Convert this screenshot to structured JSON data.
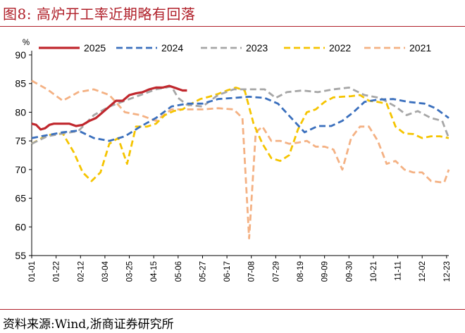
{
  "header": {
    "title": "图8:   高炉开工率近期略有回落"
  },
  "source": {
    "text": "资料来源:Wind,浙商证券研究所"
  },
  "colors": {
    "title": "#b0202a",
    "series_2025": "#c0272d",
    "series_2024": "#3a6fbd",
    "series_2023": "#a6a6a6",
    "series_2022": "#f5c400",
    "series_2021": "#f4b183"
  },
  "chart_data": {
    "type": "line",
    "y_unit": "%",
    "ylim": [
      55,
      90
    ],
    "y_ticks": [
      55,
      60,
      65,
      70,
      75,
      80,
      85,
      90
    ],
    "x_tick_labels": [
      "01-01",
      "01-22",
      "02-12",
      "03-04",
      "03-25",
      "04-15",
      "05-06",
      "05-27",
      "06-17",
      "07-08",
      "07-29",
      "08-19",
      "09-09",
      "09-30",
      "10-21",
      "11-11",
      "12-02",
      "12-23"
    ],
    "grid": false,
    "legend": "top",
    "series": [
      {
        "name": "2025",
        "style": "solid",
        "color": "#c0272d",
        "points": [
          [
            0,
            78
          ],
          [
            2,
            77.8
          ],
          [
            4,
            77
          ],
          [
            6,
            77.2
          ],
          [
            8,
            77.8
          ],
          [
            10,
            78
          ],
          [
            12,
            78
          ],
          [
            14,
            78
          ],
          [
            17,
            78
          ],
          [
            20,
            77.6
          ],
          [
            23,
            77.8
          ],
          [
            26,
            78.5
          ],
          [
            29,
            79
          ],
          [
            32,
            80
          ],
          [
            35,
            81
          ],
          [
            38,
            82
          ],
          [
            41,
            82
          ],
          [
            44,
            83
          ],
          [
            47,
            83.3
          ],
          [
            50,
            83.5
          ],
          [
            53,
            84
          ],
          [
            56,
            84.3
          ],
          [
            59,
            84.3
          ],
          [
            62,
            84.6
          ],
          [
            65,
            84.2
          ],
          [
            68,
            83.8
          ],
          [
            70,
            83.8
          ]
        ]
      },
      {
        "name": "2024",
        "style": "dashed",
        "color": "#3a6fbd",
        "points": [
          [
            0,
            75.5
          ],
          [
            7,
            76
          ],
          [
            14,
            76.5
          ],
          [
            21,
            76.8
          ],
          [
            28,
            75.5
          ],
          [
            35,
            75
          ],
          [
            42,
            75.8
          ],
          [
            49,
            77.5
          ],
          [
            56,
            79
          ],
          [
            63,
            81
          ],
          [
            70,
            81.5
          ],
          [
            77,
            81.5
          ],
          [
            84,
            82.3
          ],
          [
            91,
            82.5
          ],
          [
            98,
            82.7
          ],
          [
            105,
            82.5
          ],
          [
            111,
            81.5
          ],
          [
            117,
            79
          ],
          [
            123,
            76.5
          ],
          [
            129,
            77.6
          ],
          [
            135,
            77.6
          ],
          [
            140,
            78.5
          ],
          [
            145,
            80
          ],
          [
            150,
            81.8
          ],
          [
            156,
            82.2
          ],
          [
            163,
            82.3
          ],
          [
            170,
            81.8
          ],
          [
            177,
            81.5
          ],
          [
            182,
            80.7
          ],
          [
            188,
            79
          ]
        ]
      },
      {
        "name": "2023",
        "style": "dashed",
        "color": "#a6a6a6",
        "points": [
          [
            0,
            74.5
          ],
          [
            7,
            75.8
          ],
          [
            14,
            76.3
          ],
          [
            21,
            76.7
          ],
          [
            28,
            79.5
          ],
          [
            35,
            81
          ],
          [
            42,
            82
          ],
          [
            49,
            83
          ],
          [
            56,
            84
          ],
          [
            63,
            84.5
          ],
          [
            66,
            82.5
          ],
          [
            70,
            81.3
          ],
          [
            77,
            81
          ],
          [
            84,
            83
          ],
          [
            91,
            84
          ],
          [
            98,
            84
          ],
          [
            105,
            84
          ],
          [
            110,
            82.5
          ],
          [
            115,
            83.5
          ],
          [
            122,
            83.8
          ],
          [
            129,
            83.5
          ],
          [
            136,
            84
          ],
          [
            143,
            84.3
          ],
          [
            150,
            83
          ],
          [
            157,
            82.5
          ],
          [
            164,
            81
          ],
          [
            169,
            79.5
          ],
          [
            174,
            80.2
          ],
          [
            180,
            79
          ],
          [
            185,
            78.5
          ],
          [
            188,
            75.5
          ]
        ]
      },
      {
        "name": "2022",
        "style": "dashed",
        "color": "#f5c400",
        "points": [
          [
            0,
            74.5
          ],
          [
            7,
            76
          ],
          [
            14,
            76.3
          ],
          [
            19,
            73
          ],
          [
            23,
            69.5
          ],
          [
            27,
            68
          ],
          [
            31,
            69.5
          ],
          [
            35,
            74.5
          ],
          [
            39,
            75.5
          ],
          [
            43,
            71
          ],
          [
            47,
            77.5
          ],
          [
            52,
            77.5
          ],
          [
            56,
            78
          ],
          [
            60,
            79.5
          ],
          [
            64,
            80.2
          ],
          [
            68,
            80.5
          ],
          [
            72,
            81.5
          ],
          [
            76,
            82.3
          ],
          [
            80,
            82.7
          ],
          [
            84,
            83.2
          ],
          [
            88,
            83.8
          ],
          [
            92,
            84.3
          ],
          [
            96,
            83.8
          ],
          [
            100,
            78
          ],
          [
            104,
            74.5
          ],
          [
            108,
            72
          ],
          [
            112,
            71.5
          ],
          [
            116,
            72.5
          ],
          [
            120,
            77
          ],
          [
            124,
            80
          ],
          [
            128,
            80.5
          ],
          [
            132,
            81.8
          ],
          [
            136,
            82.6
          ],
          [
            140,
            82.7
          ],
          [
            144,
            82.8
          ],
          [
            148,
            83
          ],
          [
            152,
            82
          ],
          [
            156,
            81.8
          ],
          [
            160,
            81.5
          ],
          [
            164,
            77.5
          ],
          [
            168,
            76.3
          ],
          [
            172,
            76.2
          ],
          [
            176,
            75.5
          ],
          [
            180,
            75.8
          ],
          [
            184,
            75.8
          ],
          [
            188,
            75.5
          ]
        ]
      },
      {
        "name": "2021",
        "style": "dashed",
        "color": "#f4b183",
        "points": [
          [
            0,
            85.5
          ],
          [
            7,
            84
          ],
          [
            14,
            82
          ],
          [
            21,
            83.5
          ],
          [
            28,
            84
          ],
          [
            35,
            83
          ],
          [
            42,
            80
          ],
          [
            49,
            79.5
          ],
          [
            56,
            78.5
          ],
          [
            63,
            80.5
          ],
          [
            70,
            80.5
          ],
          [
            77,
            80.5
          ],
          [
            84,
            80.7
          ],
          [
            91,
            80.5
          ],
          [
            95,
            79
          ],
          [
            98,
            58
          ],
          [
            101,
            76.5
          ],
          [
            104,
            77.5
          ],
          [
            108,
            75
          ],
          [
            112,
            75
          ],
          [
            116,
            74.5
          ],
          [
            120,
            74.7
          ],
          [
            124,
            75
          ],
          [
            128,
            74
          ],
          [
            132,
            74
          ],
          [
            136,
            73.5
          ],
          [
            140,
            70
          ],
          [
            144,
            75.5
          ],
          [
            148,
            77.5
          ],
          [
            152,
            77.5
          ],
          [
            156,
            75
          ],
          [
            160,
            71
          ],
          [
            164,
            71.5
          ],
          [
            168,
            70
          ],
          [
            172,
            69.5
          ],
          [
            176,
            69.5
          ],
          [
            180,
            68
          ],
          [
            184,
            67.8
          ],
          [
            186,
            67.8
          ],
          [
            188,
            70
          ]
        ]
      }
    ]
  }
}
